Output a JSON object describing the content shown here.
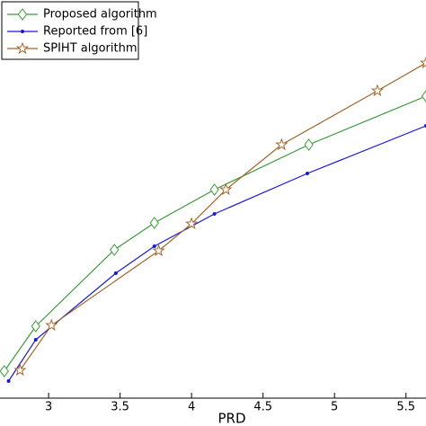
{
  "chart_data": {
    "type": "line",
    "x_label": "PRD",
    "xlim": [
      2.66,
      5.64
    ],
    "xticks": [
      3,
      3.5,
      4,
      4.5,
      5,
      5.5
    ],
    "ylim": [
      0,
      443
    ],
    "legend": "upper left",
    "series": [
      {
        "name": "Proposed algorithm",
        "color": "#3a9a3a",
        "marker": "diamond",
        "x": [
          2.69,
          2.91,
          3.46,
          3.74,
          4.16,
          4.82,
          5.64
        ],
        "values": [
          30,
          80,
          165,
          195,
          232,
          282,
          336
        ]
      },
      {
        "name": "Reported from [6]",
        "color": "#1a1ad0",
        "marker": "dot",
        "x": [
          2.72,
          2.91,
          3.47,
          3.74,
          4.16,
          4.81,
          5.64
        ],
        "values": [
          19,
          65,
          139,
          169,
          205,
          250,
          303
        ]
      },
      {
        "name": "SPIHT algorithm",
        "color": "#a0662a",
        "marker": "star",
        "x": [
          2.8,
          3.02,
          3.77,
          4.0,
          4.24,
          4.63,
          5.3,
          5.64
        ],
        "values": [
          31,
          81,
          164,
          194,
          232,
          282,
          342,
          373
        ]
      }
    ]
  }
}
